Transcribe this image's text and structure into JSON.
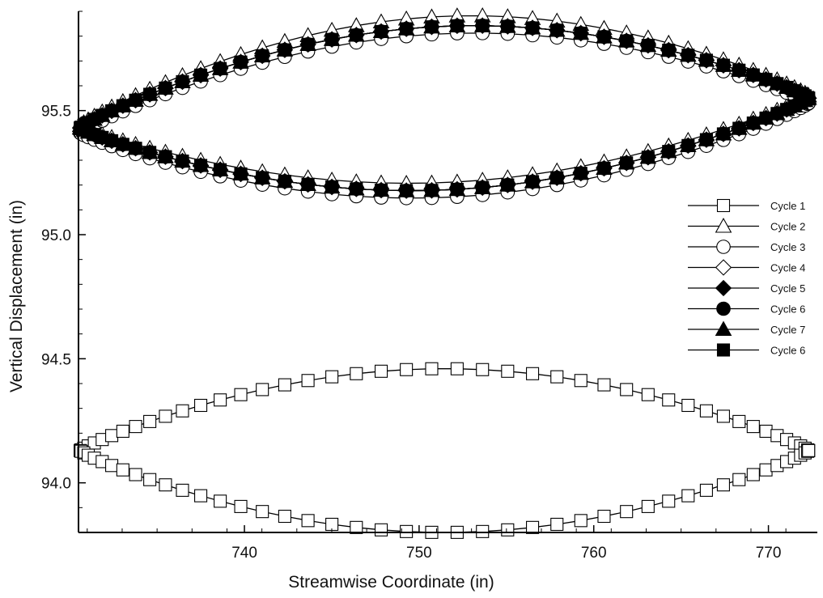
{
  "chart_data": {
    "type": "scatter",
    "title": "",
    "xlabel": "Streamwise Coordinate (in)",
    "ylabel": "Vertical Displacement (in)",
    "xlim": [
      730.5,
      772.8
    ],
    "ylim": [
      93.8,
      95.9
    ],
    "xticks": [
      740,
      750,
      760,
      770
    ],
    "xtick_labels": [
      "740",
      "750",
      "760",
      "770"
    ],
    "yticks": [
      94.0,
      94.5,
      95.0,
      95.5
    ],
    "ytick_labels": [
      "94.0",
      "94.5",
      "95.0",
      "95.5"
    ],
    "grid": false,
    "legend_position": "right",
    "loop_shape": {
      "x_start": 730.6,
      "x_end": 772.3,
      "points_per_half": 46
    },
    "series": [
      {
        "name": "Cycle 1",
        "marker": "square-open",
        "left_y": 94.13,
        "right_y": 94.13,
        "upper_peak_y": 94.46,
        "lower_trough_y": 93.8,
        "peak_x": 757
      },
      {
        "name": "Cycle 2",
        "marker": "triangle-open",
        "left_y": 95.44,
        "right_y": 95.56,
        "upper_peak_y": 95.88,
        "lower_trough_y": 95.21,
        "peak_x": 757.5
      },
      {
        "name": "Cycle 3",
        "marker": "circle-open",
        "left_y": 95.41,
        "right_y": 95.53,
        "upper_peak_y": 95.81,
        "lower_trough_y": 95.15,
        "peak_x": 757.5
      },
      {
        "name": "Cycle 4",
        "marker": "diamond-open",
        "left_y": 95.43,
        "right_y": 95.55,
        "upper_peak_y": 95.84,
        "lower_trough_y": 95.18,
        "peak_x": 757.5
      },
      {
        "name": "Cycle 5",
        "marker": "diamond-filled",
        "left_y": 95.43,
        "right_y": 95.55,
        "upper_peak_y": 95.84,
        "lower_trough_y": 95.18,
        "peak_x": 757.5
      },
      {
        "name": "Cycle 6",
        "marker": "circle-filled",
        "left_y": 95.43,
        "right_y": 95.55,
        "upper_peak_y": 95.84,
        "lower_trough_y": 95.18,
        "peak_x": 757.5
      },
      {
        "name": "Cycle 7",
        "marker": "triangle-filled",
        "left_y": 95.43,
        "right_y": 95.55,
        "upper_peak_y": 95.84,
        "lower_trough_y": 95.18,
        "peak_x": 757.5
      },
      {
        "name": "Cycle 6",
        "marker": "square-filled",
        "left_y": 95.43,
        "right_y": 95.55,
        "upper_peak_y": 95.84,
        "lower_trough_y": 95.18,
        "peak_x": 757.5
      }
    ],
    "colors": {
      "ink": "#000000",
      "open_fill": "#ffffff"
    }
  }
}
